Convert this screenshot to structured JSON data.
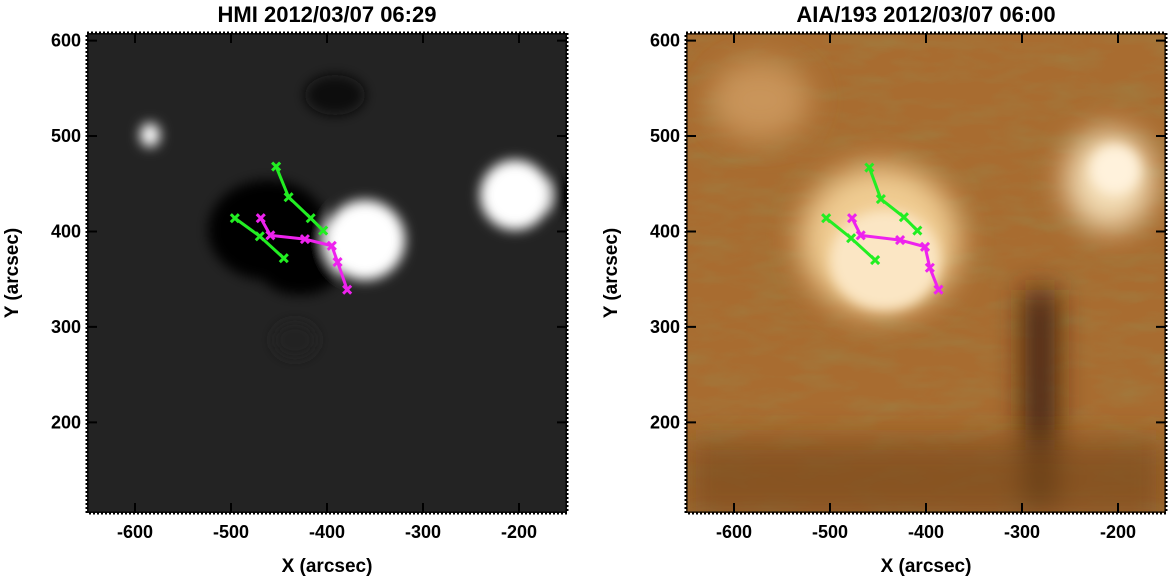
{
  "chart_data": [
    {
      "type": "image",
      "title": "HMI 2012/03/07 06:29",
      "xlabel": "X (arcsec)",
      "ylabel": "Y (arcsec)",
      "xlim": [
        -650,
        -150
      ],
      "ylim": [
        105,
        608
      ],
      "xticks": [
        -600,
        -500,
        -400,
        -300,
        -200
      ],
      "yticks": [
        200,
        300,
        400,
        500,
        600
      ],
      "series": [
        {
          "color": "#22ee22",
          "x": [
            -453,
            -440,
            -417,
            -404
          ],
          "y": [
            468,
            436,
            414,
            401
          ]
        },
        {
          "color": "#22ee22",
          "x": [
            -496,
            -470,
            -445
          ],
          "y": [
            414,
            395,
            372
          ]
        },
        {
          "color": "#ee22ee",
          "x": [
            -469,
            -459,
            -423,
            -395,
            -389,
            -379
          ],
          "y": [
            414,
            396,
            392,
            385,
            368,
            339
          ]
        }
      ]
    },
    {
      "type": "image",
      "title": "AIA/193 2012/03/07 06:00",
      "xlabel": "X (arcsec)",
      "ylabel": "Y (arcsec)",
      "xlim": [
        -650,
        -150
      ],
      "ylim": [
        105,
        608
      ],
      "xticks": [
        -600,
        -500,
        -400,
        -300,
        -200
      ],
      "yticks": [
        200,
        300,
        400,
        500,
        600
      ],
      "series": [
        {
          "color": "#22ee22",
          "x": [
            -459,
            -447,
            -423,
            -409
          ],
          "y": [
            467,
            434,
            415,
            401
          ]
        },
        {
          "color": "#22ee22",
          "x": [
            -504,
            -478,
            -453
          ],
          "y": [
            414,
            393,
            370
          ]
        },
        {
          "color": "#ee22ee",
          "x": [
            -477,
            -468,
            -427,
            -401,
            -396,
            -387
          ],
          "y": [
            414,
            396,
            391,
            384,
            362,
            339
          ]
        }
      ]
    }
  ]
}
